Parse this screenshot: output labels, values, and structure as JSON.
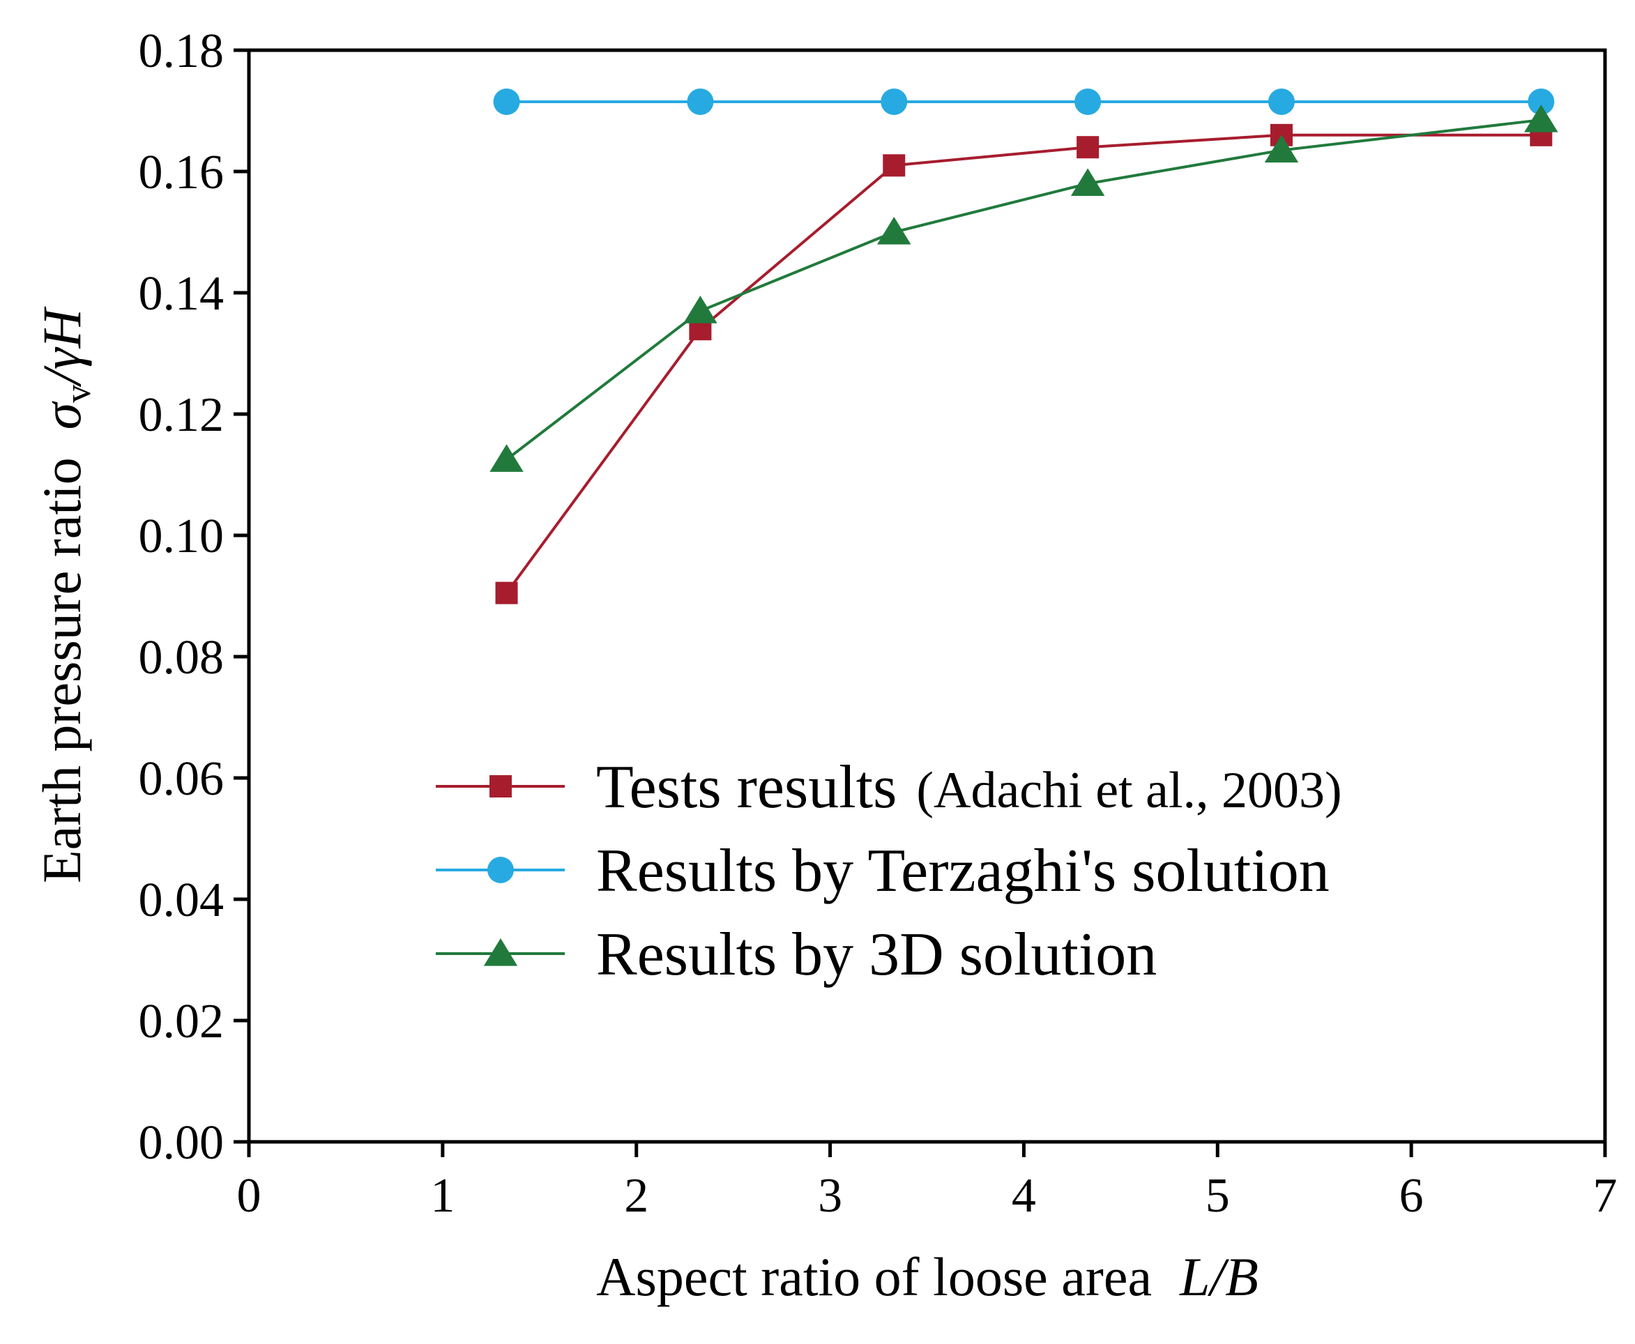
{
  "chart_data": {
    "type": "line",
    "xlabel": "Aspect ratio of loose area",
    "xlabel_var": "L/B",
    "ylabel": "Earth pressure ratio",
    "ylabel_var": {
      "sigma": "σ",
      "sub": "v",
      "rest": "/γH"
    },
    "xlim": [
      0,
      7
    ],
    "ylim": [
      0,
      0.18
    ],
    "x_ticks": [
      "0",
      "1",
      "2",
      "3",
      "4",
      "5",
      "6",
      "7"
    ],
    "y_ticks": [
      "0.00",
      "0.02",
      "0.04",
      "0.06",
      "0.08",
      "0.10",
      "0.12",
      "0.14",
      "0.16",
      "0.18"
    ],
    "grid": false,
    "legend_position": "lower-center",
    "series": [
      {
        "name": "Tests results",
        "name_suffix": "(Adachi et al., 2003)",
        "marker": "square",
        "color": "#a71d2e",
        "x": [
          1.33,
          2.33,
          3.33,
          4.33,
          5.33,
          6.67
        ],
        "values": [
          0.0905,
          0.134,
          0.161,
          0.164,
          0.166,
          0.166
        ]
      },
      {
        "name": "Results by Terzaghi's solution",
        "marker": "circle",
        "color": "#27aae1",
        "x": [
          1.33,
          2.33,
          3.33,
          4.33,
          5.33,
          6.67
        ],
        "values": [
          0.1715,
          0.1715,
          0.1715,
          0.1715,
          0.1715,
          0.1715
        ]
      },
      {
        "name": "Results by 3D solution",
        "marker": "triangle",
        "color": "#217a3c",
        "x": [
          1.33,
          2.33,
          3.33,
          4.33,
          5.33,
          6.67
        ],
        "values": [
          0.1125,
          0.137,
          0.15,
          0.158,
          0.1635,
          0.1685
        ]
      }
    ]
  }
}
